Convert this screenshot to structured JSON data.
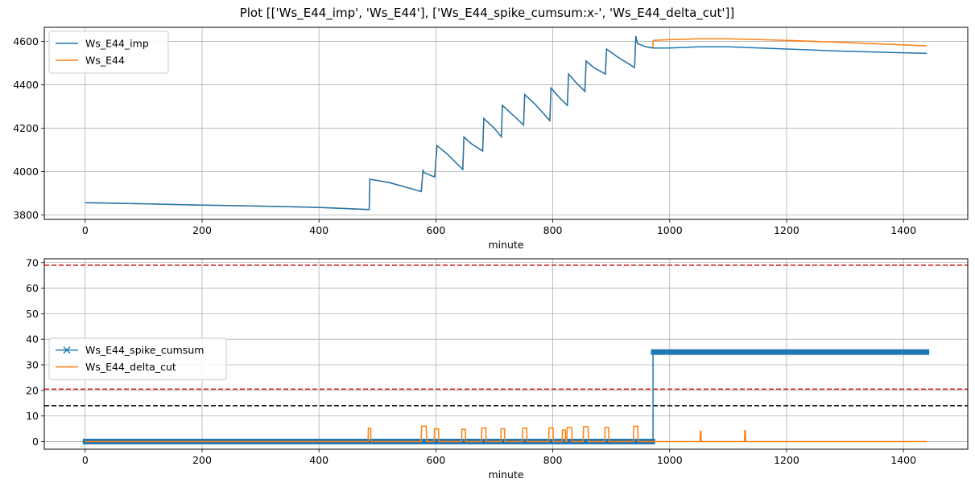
{
  "title": "Plot [['Ws_E44_imp', 'Ws_E44'], ['Ws_E44_spike_cumsum:x-', 'Ws_E44_delta_cut']]",
  "colors": {
    "blue": "#1f77b4",
    "orange": "#ff7f0e",
    "red": "#d62728",
    "black": "#000000",
    "grid": "#b0b0b0"
  },
  "chart_data": [
    {
      "type": "line",
      "xlabel": "minute",
      "ylabel": "",
      "xlim": [
        -70,
        1510
      ],
      "ylim": [
        3780,
        4665
      ],
      "xticks": [
        0,
        200,
        400,
        600,
        800,
        1000,
        1200,
        1400
      ],
      "yticks": [
        3800,
        4000,
        4200,
        4400,
        4600
      ],
      "grid": true,
      "legend": "upper left",
      "series": [
        {
          "name": "Ws_E44_imp",
          "color": "#1f77b4",
          "x": [
            0,
            100,
            200,
            300,
            400,
            486,
            487,
            520,
            560,
            575,
            578,
            580,
            598,
            602,
            620,
            646,
            648,
            660,
            680,
            682,
            700,
            712,
            714,
            730,
            750,
            752,
            770,
            795,
            797,
            810,
            825,
            827,
            840,
            855,
            857,
            870,
            890,
            892,
            910,
            940,
            942,
            945,
            960,
            972,
            1000,
            1050,
            1100,
            1200,
            1300,
            1440
          ],
          "y": [
            3857,
            3852,
            3846,
            3841,
            3835,
            3825,
            3965,
            3950,
            3920,
            3908,
            4005,
            3995,
            3975,
            4120,
            4080,
            4010,
            4160,
            4130,
            4095,
            4245,
            4200,
            4160,
            4305,
            4265,
            4215,
            4355,
            4310,
            4235,
            4385,
            4345,
            4305,
            4450,
            4410,
            4370,
            4510,
            4480,
            4450,
            4565,
            4530,
            4480,
            4625,
            4590,
            4575,
            4570,
            4570,
            4575,
            4575,
            4565,
            4555,
            4545
          ]
        },
        {
          "name": "Ws_E44",
          "color": "#ff7f0e",
          "x": [
            0,
            100,
            200,
            300,
            400,
            486,
            487,
            520,
            560,
            575,
            578,
            580,
            598,
            602,
            620,
            646,
            648,
            660,
            680,
            682,
            700,
            712,
            714,
            730,
            750,
            752,
            770,
            795,
            797,
            810,
            825,
            827,
            840,
            855,
            857,
            870,
            890,
            892,
            910,
            940,
            942,
            945,
            960,
            971,
            972,
            1000,
            1050,
            1100,
            1200,
            1300,
            1440
          ],
          "y": [
            3857,
            3852,
            3846,
            3841,
            3835,
            3825,
            3965,
            3950,
            3920,
            3908,
            4005,
            3995,
            3975,
            4120,
            4080,
            4010,
            4160,
            4130,
            4095,
            4245,
            4200,
            4160,
            4305,
            4265,
            4215,
            4355,
            4310,
            4235,
            4385,
            4345,
            4305,
            4450,
            4410,
            4370,
            4510,
            4480,
            4450,
            4565,
            4530,
            4480,
            4625,
            4590,
            4575,
            4570,
            4605,
            4608,
            4612,
            4612,
            4605,
            4595,
            4580
          ]
        }
      ]
    },
    {
      "type": "line",
      "xlabel": "minute",
      "ylabel": "",
      "xlim": [
        -70,
        1510
      ],
      "ylim": [
        -3,
        71.5
      ],
      "xticks": [
        0,
        200,
        400,
        600,
        800,
        1000,
        1200,
        1400
      ],
      "yticks": [
        0,
        10,
        20,
        30,
        40,
        50,
        60,
        70
      ],
      "grid": true,
      "legend": "center left",
      "hlines": [
        {
          "y": 69,
          "color": "#d62728",
          "style": "dashed"
        },
        {
          "y": 20.5,
          "color": "#d62728",
          "style": "dashed"
        },
        {
          "y": 14,
          "color": "#000000",
          "style": "dashed"
        }
      ],
      "series": [
        {
          "name": "Ws_E44_spike_cumsum",
          "color": "#1f77b4",
          "marker": "x",
          "segments": [
            {
              "x_start": 0,
              "x_end": 971,
              "y": 0
            },
            {
              "x_start": 972,
              "x_end": 1440,
              "y": 35
            }
          ],
          "step_at": 971.5
        },
        {
          "name": "Ws_E44_delta_cut",
          "color": "#ff7f0e",
          "baseline": 0,
          "pulses": [
            {
              "x0": 484,
              "x1": 489,
              "y": 5.2
            },
            {
              "x0": 575,
              "x1": 584,
              "y": 6
            },
            {
              "x0": 597,
              "x1": 605,
              "y": 5
            },
            {
              "x0": 644,
              "x1": 651,
              "y": 4.8
            },
            {
              "x0": 678,
              "x1": 686,
              "y": 5.3
            },
            {
              "x0": 711,
              "x1": 718,
              "y": 5
            },
            {
              "x0": 748,
              "x1": 756,
              "y": 5.2
            },
            {
              "x0": 793,
              "x1": 801,
              "y": 5.3
            },
            {
              "x0": 816,
              "x1": 822,
              "y": 4.5
            },
            {
              "x0": 824,
              "x1": 833,
              "y": 5.5
            },
            {
              "x0": 852,
              "x1": 861,
              "y": 5.8
            },
            {
              "x0": 889,
              "x1": 896,
              "y": 5.5
            },
            {
              "x0": 938,
              "x1": 946,
              "y": 6
            },
            {
              "x0": 1052,
              "x1": 1054,
              "y": 4
            },
            {
              "x0": 1128,
              "x1": 1130,
              "y": 4.3
            }
          ],
          "x_end": 1440
        }
      ]
    }
  ]
}
